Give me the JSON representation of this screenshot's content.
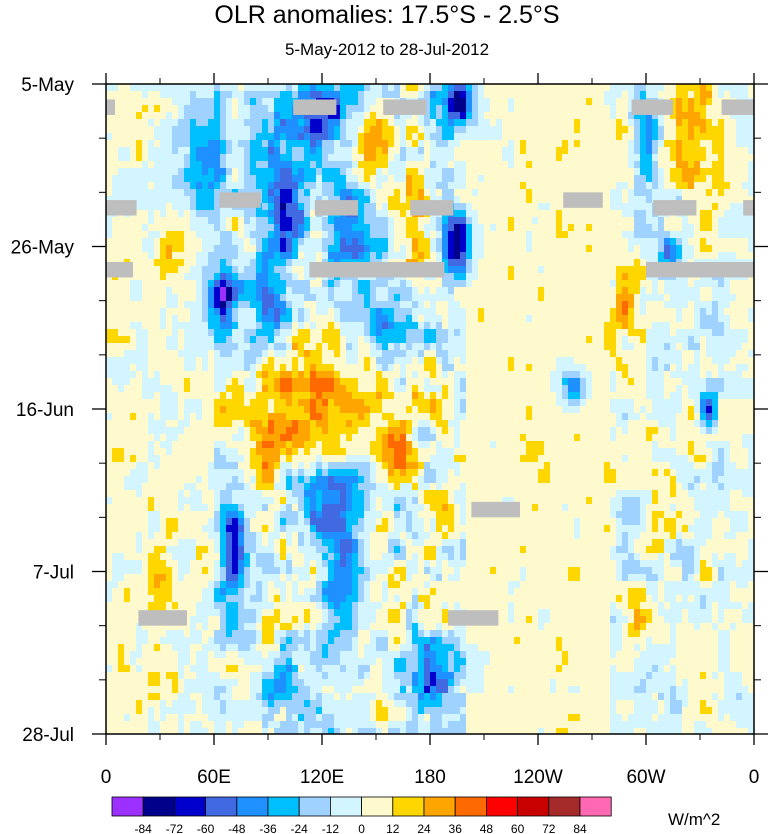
{
  "title": "OLR anomalies: 17.5°S - 2.5°S",
  "subtitle": "5-May-2012 to 28-Jul-2012",
  "chart_data": {
    "type": "heatmap",
    "title": "OLR anomalies: 17.5°S - 2.5°S",
    "subtitle": "5-May-2012 to 28-Jul-2012",
    "x_ticks": [
      "0",
      "60E",
      "120E",
      "180",
      "120W",
      "60W",
      "0"
    ],
    "x_range_deg_east": [
      0,
      360
    ],
    "y_ticks": [
      "5-May",
      "26-May",
      "16-Jun",
      "7-Jul",
      "28-Jul"
    ],
    "y_range": [
      "2012-05-05",
      "2012-07-28"
    ],
    "colorbar": {
      "units": "W/m^2",
      "levels": [
        -84,
        -72,
        -60,
        -48,
        -36,
        -24,
        -12,
        0,
        12,
        24,
        36,
        48,
        60,
        72,
        84
      ],
      "labels": [
        "-84",
        "-72",
        "-60",
        "-48",
        "-36",
        "-24",
        "-12",
        "0",
        "12",
        "24",
        "36",
        "48",
        "60",
        "72",
        "84"
      ],
      "colors": [
        "#9b30ff",
        "#00008b",
        "#0000cd",
        "#4169e1",
        "#1e90ff",
        "#00bfff",
        "#a0d2ff",
        "#d2f5ff",
        "#fffacd",
        "#ffd700",
        "#ffa500",
        "#ff6a00",
        "#ff0000",
        "#c80000",
        "#a52a2a",
        "#ff69b4"
      ]
    },
    "missing_data_color": "#bebebe",
    "blobs": [
      {
        "lon": 120,
        "date": "2012-05-08",
        "value": -55,
        "rlon": 18,
        "rdays": 6
      },
      {
        "lon": 195,
        "date": "2012-05-07",
        "value": -70,
        "rlon": 10,
        "rdays": 4
      },
      {
        "lon": 55,
        "date": "2012-05-15",
        "value": -45,
        "rlon": 14,
        "rdays": 8
      },
      {
        "lon": 100,
        "date": "2012-05-20",
        "value": -50,
        "rlon": 15,
        "rdays": 10
      },
      {
        "lon": 135,
        "date": "2012-05-24",
        "value": -45,
        "rlon": 14,
        "rdays": 8
      },
      {
        "lon": 195,
        "date": "2012-05-26",
        "value": -80,
        "rlon": 8,
        "rdays": 4
      },
      {
        "lon": 65,
        "date": "2012-06-02",
        "value": -78,
        "rlon": 8,
        "rdays": 5
      },
      {
        "lon": 90,
        "date": "2012-06-03",
        "value": -40,
        "rlon": 10,
        "rdays": 8
      },
      {
        "lon": 160,
        "date": "2012-06-05",
        "value": -40,
        "rlon": 18,
        "rdays": 5
      },
      {
        "lon": 150,
        "date": "2012-05-13",
        "value": 30,
        "rlon": 10,
        "rdays": 5
      },
      {
        "lon": 170,
        "date": "2012-05-23",
        "value": 28,
        "rlon": 12,
        "rdays": 5
      },
      {
        "lon": 115,
        "date": "2012-06-14",
        "value": 30,
        "rlon": 22,
        "rdays": 10
      },
      {
        "lon": 85,
        "date": "2012-06-18",
        "value": 28,
        "rlon": 18,
        "rdays": 10
      },
      {
        "lon": 160,
        "date": "2012-06-20",
        "value": 25,
        "rlon": 15,
        "rdays": 6
      },
      {
        "lon": 120,
        "date": "2012-06-28",
        "value": -50,
        "rlon": 22,
        "rdays": 5
      },
      {
        "lon": 70,
        "date": "2012-07-04",
        "value": -60,
        "rlon": 8,
        "rdays": 8
      },
      {
        "lon": 130,
        "date": "2012-07-05",
        "value": -40,
        "rlon": 10,
        "rdays": 10
      },
      {
        "lon": 180,
        "date": "2012-07-20",
        "value": -55,
        "rlon": 16,
        "rdays": 4
      },
      {
        "lon": 100,
        "date": "2012-07-22",
        "value": -40,
        "rlon": 12,
        "rdays": 4
      },
      {
        "lon": 300,
        "date": "2012-05-12",
        "value": -50,
        "rlon": 6,
        "rdays": 5
      },
      {
        "lon": 313,
        "date": "2012-05-27",
        "value": -48,
        "rlon": 6,
        "rdays": 3
      },
      {
        "lon": 260,
        "date": "2012-06-13",
        "value": -55,
        "rlon": 7,
        "rdays": 2
      },
      {
        "lon": 335,
        "date": "2012-06-16",
        "value": -50,
        "rlon": 5,
        "rdays": 3
      },
      {
        "lon": 325,
        "date": "2012-05-11",
        "value": 30,
        "rlon": 12,
        "rdays": 8
      },
      {
        "lon": 35,
        "date": "2012-05-26",
        "value": 25,
        "rlon": 8,
        "rdays": 4
      },
      {
        "lon": 30,
        "date": "2012-07-08",
        "value": 28,
        "rlon": 6,
        "rdays": 4
      },
      {
        "lon": 295,
        "date": "2012-07-14",
        "value": 25,
        "rlon": 6,
        "rdays": 4
      },
      {
        "lon": 290,
        "date": "2012-06-02",
        "value": 25,
        "rlon": 8,
        "rdays": 5
      }
    ],
    "missing_data": [
      {
        "lon": [
          0,
          5
        ],
        "dates": [
          "2012-05-07",
          "2012-05-09"
        ]
      },
      {
        "lon": [
          104,
          128
        ],
        "dates": [
          "2012-05-07",
          "2012-05-09"
        ]
      },
      {
        "lon": [
          154,
          178
        ],
        "dates": [
          "2012-05-07",
          "2012-05-09"
        ]
      },
      {
        "lon": [
          292,
          315
        ],
        "dates": [
          "2012-05-07",
          "2012-05-09"
        ]
      },
      {
        "lon": [
          342,
          360
        ],
        "dates": [
          "2012-05-07",
          "2012-05-09"
        ]
      },
      {
        "lon": [
          0,
          17
        ],
        "dates": [
          "2012-05-20",
          "2012-05-22"
        ]
      },
      {
        "lon": [
          63,
          86
        ],
        "dates": [
          "2012-05-19",
          "2012-05-21"
        ]
      },
      {
        "lon": [
          116,
          140
        ],
        "dates": [
          "2012-05-20",
          "2012-05-22"
        ]
      },
      {
        "lon": [
          169,
          193
        ],
        "dates": [
          "2012-05-20",
          "2012-05-22"
        ]
      },
      {
        "lon": [
          254,
          276
        ],
        "dates": [
          "2012-05-19",
          "2012-05-21"
        ]
      },
      {
        "lon": [
          304,
          328
        ],
        "dates": [
          "2012-05-20",
          "2012-05-22"
        ]
      },
      {
        "lon": [
          354,
          360
        ],
        "dates": [
          "2012-05-20",
          "2012-05-22"
        ]
      },
      {
        "lon": [
          0,
          15
        ],
        "dates": [
          "2012-05-28",
          "2012-05-30"
        ]
      },
      {
        "lon": [
          113,
          188
        ],
        "dates": [
          "2012-05-28",
          "2012-05-30"
        ]
      },
      {
        "lon": [
          300,
          360
        ],
        "dates": [
          "2012-05-28",
          "2012-05-30"
        ]
      },
      {
        "lon": [
          203,
          230
        ],
        "dates": [
          "2012-06-28",
          "2012-06-30"
        ]
      },
      {
        "lon": [
          18,
          45
        ],
        "dates": [
          "2012-07-12",
          "2012-07-14"
        ]
      },
      {
        "lon": [
          190,
          218
        ],
        "dates": [
          "2012-07-12",
          "2012-07-14"
        ]
      }
    ]
  }
}
